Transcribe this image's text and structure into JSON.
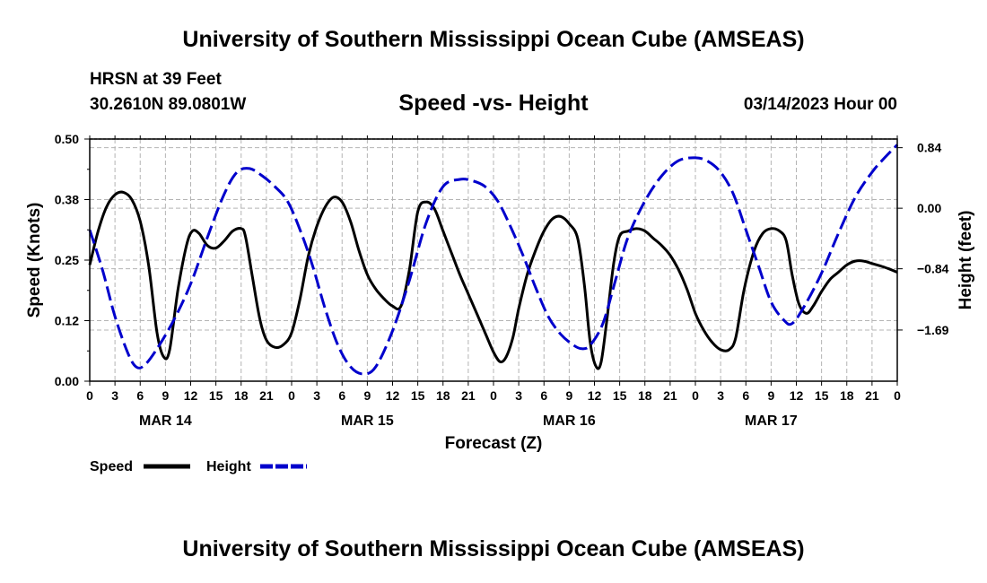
{
  "header": {
    "title_top": "University of Southern Mississippi Ocean Cube (AMSEAS)",
    "station": "HRSN at 39 Feet",
    "coords": "30.2610N  89.0801W",
    "subtitle": "Speed -vs- Height",
    "datetime": "03/14/2023 Hour 00"
  },
  "footer": {
    "title_bottom": "University of Southern Mississippi Ocean Cube (AMSEAS)"
  },
  "colors": {
    "speed": "#000000",
    "height": "#0000cc",
    "grid": "#b4b4b4"
  },
  "chart_data": {
    "type": "line",
    "title": "Speed -vs- Height",
    "xlabel": "Forecast (Z)",
    "ylabel": "Speed (Knots)",
    "y2label": "Height (feet)",
    "xlim": [
      0,
      96
    ],
    "ylim": [
      0,
      0.5
    ],
    "y2lim": [
      -2.4,
      0.96
    ],
    "x_tick_labels": [
      "0",
      "3",
      "6",
      "9",
      "12",
      "15",
      "18",
      "21",
      "0",
      "3",
      "6",
      "9",
      "12",
      "15",
      "18",
      "21",
      "0",
      "3",
      "6",
      "9",
      "12",
      "15",
      "18",
      "21",
      "0",
      "3",
      "6",
      "9",
      "12",
      "15",
      "18",
      "21",
      "0"
    ],
    "date_labels": [
      {
        "label": "MAR 14",
        "x": 9
      },
      {
        "label": "MAR 15",
        "x": 33
      },
      {
        "label": "MAR 16",
        "x": 57
      },
      {
        "label": "MAR 17",
        "x": 81
      }
    ],
    "y_ticks": [
      {
        "value": 0.0,
        "label": "0.00"
      },
      {
        "value": 0.125,
        "label": "0.12"
      },
      {
        "value": 0.25,
        "label": "0.25"
      },
      {
        "value": 0.375,
        "label": "0.38"
      },
      {
        "value": 0.5,
        "label": "0.50"
      }
    ],
    "y2_ticks": [
      {
        "value": 0.84,
        "label": "0.84"
      },
      {
        "value": 0.0,
        "label": "0.00"
      },
      {
        "value": -0.84,
        "label": "−0.84"
      },
      {
        "value": -1.69,
        "label": "−1.69"
      }
    ],
    "legend": [
      "Speed",
      "Height"
    ],
    "series": [
      {
        "name": "Speed",
        "axis": "left",
        "style": "solid",
        "points": [
          [
            0,
            0.24
          ],
          [
            1,
            0.31
          ],
          [
            2,
            0.36
          ],
          [
            3,
            0.385
          ],
          [
            4,
            0.39
          ],
          [
            5,
            0.375
          ],
          [
            6,
            0.33
          ],
          [
            7,
            0.24
          ],
          [
            8,
            0.1
          ],
          [
            8.8,
            0.05
          ],
          [
            9.5,
            0.065
          ],
          [
            10.5,
            0.19
          ],
          [
            11.5,
            0.28
          ],
          [
            12.2,
            0.31
          ],
          [
            13,
            0.305
          ],
          [
            14,
            0.28
          ],
          [
            15,
            0.275
          ],
          [
            16,
            0.29
          ],
          [
            17,
            0.31
          ],
          [
            18,
            0.315
          ],
          [
            18.5,
            0.3
          ],
          [
            19.3,
            0.22
          ],
          [
            20.2,
            0.13
          ],
          [
            21,
            0.085
          ],
          [
            22,
            0.07
          ],
          [
            23,
            0.075
          ],
          [
            24,
            0.1
          ],
          [
            25,
            0.17
          ],
          [
            26,
            0.26
          ],
          [
            27,
            0.32
          ],
          [
            28,
            0.36
          ],
          [
            29,
            0.38
          ],
          [
            30,
            0.37
          ],
          [
            31,
            0.33
          ],
          [
            32,
            0.27
          ],
          [
            33,
            0.22
          ],
          [
            34,
            0.19
          ],
          [
            35,
            0.17
          ],
          [
            36,
            0.155
          ],
          [
            37,
            0.155
          ],
          [
            38,
            0.23
          ],
          [
            39,
            0.35
          ],
          [
            40,
            0.37
          ],
          [
            41,
            0.355
          ],
          [
            42,
            0.31
          ],
          [
            43,
            0.265
          ],
          [
            44,
            0.22
          ],
          [
            45,
            0.18
          ],
          [
            46,
            0.14
          ],
          [
            47,
            0.1
          ],
          [
            48,
            0.06
          ],
          [
            48.8,
            0.04
          ],
          [
            49.5,
            0.05
          ],
          [
            50.3,
            0.09
          ],
          [
            51,
            0.15
          ],
          [
            52,
            0.22
          ],
          [
            53,
            0.27
          ],
          [
            54,
            0.31
          ],
          [
            55,
            0.335
          ],
          [
            56,
            0.34
          ],
          [
            57,
            0.325
          ],
          [
            58,
            0.295
          ],
          [
            58.8,
            0.2
          ],
          [
            59.5,
            0.08
          ],
          [
            60.2,
            0.03
          ],
          [
            60.8,
            0.04
          ],
          [
            61.5,
            0.13
          ],
          [
            62.3,
            0.245
          ],
          [
            63,
            0.3
          ],
          [
            64,
            0.31
          ],
          [
            65,
            0.315
          ],
          [
            66,
            0.31
          ],
          [
            67,
            0.295
          ],
          [
            68,
            0.28
          ],
          [
            69,
            0.26
          ],
          [
            70,
            0.23
          ],
          [
            71,
            0.19
          ],
          [
            72,
            0.14
          ],
          [
            73,
            0.105
          ],
          [
            74,
            0.08
          ],
          [
            75,
            0.065
          ],
          [
            76,
            0.065
          ],
          [
            76.8,
            0.09
          ],
          [
            77.8,
            0.19
          ],
          [
            79,
            0.27
          ],
          [
            80,
            0.305
          ],
          [
            81,
            0.315
          ],
          [
            82,
            0.31
          ],
          [
            82.8,
            0.29
          ],
          [
            83.5,
            0.22
          ],
          [
            84.3,
            0.16
          ],
          [
            85.2,
            0.14
          ],
          [
            86,
            0.155
          ],
          [
            87,
            0.185
          ],
          [
            88,
            0.21
          ],
          [
            89,
            0.225
          ],
          [
            90,
            0.24
          ],
          [
            91,
            0.248
          ],
          [
            92,
            0.248
          ],
          [
            93,
            0.243
          ],
          [
            94,
            0.238
          ],
          [
            95,
            0.232
          ],
          [
            96,
            0.225
          ]
        ]
      },
      {
        "name": "Height",
        "axis": "right",
        "style": "dashed",
        "points": [
          [
            0,
            -0.3
          ],
          [
            1.5,
            -0.85
          ],
          [
            3,
            -1.5
          ],
          [
            4.5,
            -2.0
          ],
          [
            5.5,
            -2.2
          ],
          [
            6.5,
            -2.18
          ],
          [
            8,
            -1.95
          ],
          [
            10,
            -1.55
          ],
          [
            12,
            -1.05
          ],
          [
            14,
            -0.4
          ],
          [
            16,
            0.2
          ],
          [
            17.5,
            0.5
          ],
          [
            19,
            0.55
          ],
          [
            20.5,
            0.45
          ],
          [
            22,
            0.3
          ],
          [
            23.5,
            0.1
          ],
          [
            25,
            -0.3
          ],
          [
            26.5,
            -0.8
          ],
          [
            28,
            -1.4
          ],
          [
            29.5,
            -1.9
          ],
          [
            31,
            -2.2
          ],
          [
            32.5,
            -2.3
          ],
          [
            34,
            -2.2
          ],
          [
            36,
            -1.7
          ],
          [
            38,
            -1.0
          ],
          [
            40,
            -0.2
          ],
          [
            42,
            0.3
          ],
          [
            44,
            0.4
          ],
          [
            45.5,
            0.38
          ],
          [
            47,
            0.3
          ],
          [
            48.5,
            0.1
          ],
          [
            50,
            -0.25
          ],
          [
            51.5,
            -0.65
          ],
          [
            53,
            -1.1
          ],
          [
            54.5,
            -1.5
          ],
          [
            56,
            -1.75
          ],
          [
            57.5,
            -1.9
          ],
          [
            58.5,
            -1.95
          ],
          [
            59.5,
            -1.9
          ],
          [
            61,
            -1.6
          ],
          [
            62.5,
            -1.0
          ],
          [
            64,
            -0.4
          ],
          [
            66,
            0.1
          ],
          [
            68,
            0.45
          ],
          [
            70,
            0.66
          ],
          [
            72,
            0.7
          ],
          [
            73.5,
            0.65
          ],
          [
            75,
            0.5
          ],
          [
            76.5,
            0.2
          ],
          [
            78,
            -0.3
          ],
          [
            79.5,
            -0.8
          ],
          [
            81,
            -1.3
          ],
          [
            82.5,
            -1.55
          ],
          [
            83.5,
            -1.6
          ],
          [
            85,
            -1.35
          ],
          [
            87,
            -0.9
          ],
          [
            89,
            -0.35
          ],
          [
            91,
            0.15
          ],
          [
            93,
            0.5
          ],
          [
            94.5,
            0.7
          ],
          [
            96,
            0.88
          ]
        ]
      }
    ]
  }
}
